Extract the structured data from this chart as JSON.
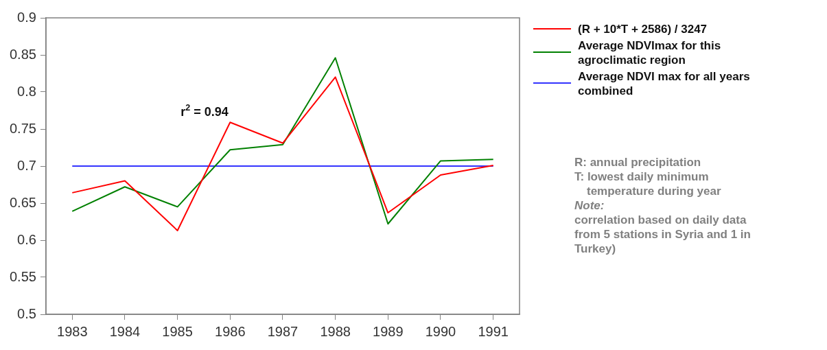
{
  "chart_data": {
    "type": "line",
    "categories": [
      "1983",
      "1984",
      "1985",
      "1986",
      "1987",
      "1988",
      "1989",
      "1990",
      "1991"
    ],
    "series": [
      {
        "name": "(R + 10*T + 2586) / 3247",
        "color": "#ff0000",
        "values": [
          0.664,
          0.68,
          0.613,
          0.759,
          0.731,
          0.82,
          0.637,
          0.688,
          0.701
        ]
      },
      {
        "name": "Average NDVImax for this agroclimatic region",
        "color": "#008000",
        "values": [
          0.639,
          0.672,
          0.645,
          0.722,
          0.729,
          0.846,
          0.622,
          0.707,
          0.709
        ]
      },
      {
        "name": "Average NDVI max for all years combined",
        "color": "#3333ff",
        "values": [
          0.7,
          0.7,
          0.7,
          0.7,
          0.7,
          0.7,
          0.7,
          0.7,
          0.7
        ]
      }
    ],
    "ylim": [
      0.5,
      0.9
    ],
    "yticks": [
      0.5,
      0.55,
      0.6,
      0.65,
      0.7,
      0.75,
      0.8,
      0.85,
      0.9
    ],
    "grid": false,
    "legend": "top right",
    "marker": "none",
    "line_style": "solid",
    "annotations": [
      "r$^{2}$ = 0.94",
      "R: annual precipitation",
      "T: lowest daily minimum temperature during year",
      "Note:",
      "correlation based on daily data from 5 stations in Syria and 1 in Turkey)"
    ]
  }
}
